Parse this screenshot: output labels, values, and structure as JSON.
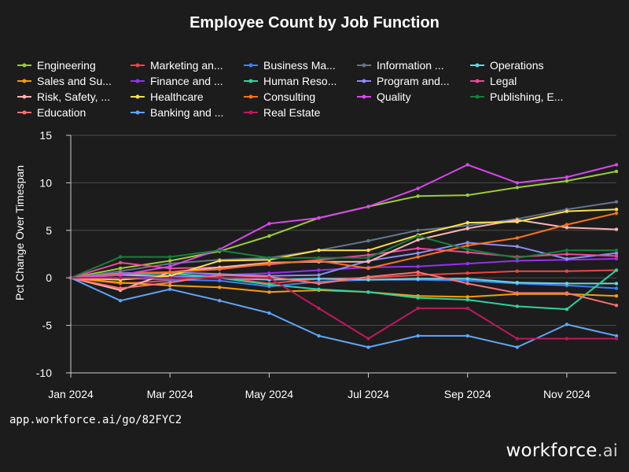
{
  "chart_data": {
    "type": "line",
    "title": "Employee Count by Job Function",
    "xlabel": "",
    "ylabel": "Pct Change Over Timespan",
    "ylim": [
      -10,
      15
    ],
    "yticks": [
      -10,
      -5,
      0,
      5,
      10,
      15
    ],
    "x": [
      "2024-01",
      "2024-02",
      "2024-03",
      "2024-04",
      "2024-05",
      "2024-06",
      "2024-07",
      "2024-08",
      "2024-09",
      "2024-10",
      "2024-11",
      "2024-12"
    ],
    "xticks": [
      {
        "index": 0,
        "label": "Jan 2024"
      },
      {
        "index": 2,
        "label": "Mar 2024"
      },
      {
        "index": 4,
        "label": "May 2024"
      },
      {
        "index": 6,
        "label": "Jul 2024"
      },
      {
        "index": 8,
        "label": "Sep 2024"
      },
      {
        "index": 10,
        "label": "Nov 2024"
      }
    ],
    "grid": true,
    "legend_position": "top",
    "series": [
      {
        "name": "Engineering",
        "color": "#9acd32",
        "values": [
          0,
          1.0,
          1.8,
          2.8,
          4.4,
          6.3,
          7.5,
          8.6,
          8.7,
          9.5,
          10.2,
          11.2
        ]
      },
      {
        "name": "Marketing an...",
        "color": "#ef4444",
        "values": [
          0,
          -0.6,
          -0.3,
          0.1,
          -0.6,
          -0.1,
          0.0,
          0.3,
          0.5,
          0.7,
          0.7,
          0.8
        ]
      },
      {
        "name": "Business Ma...",
        "color": "#3b82f6",
        "values": [
          0,
          0.0,
          -0.2,
          -0.3,
          -0.9,
          -0.4,
          -0.2,
          -0.2,
          -0.3,
          -0.6,
          -0.8,
          -1.1
        ]
      },
      {
        "name": "Information ...",
        "color": "#64748b",
        "values": [
          0,
          0.7,
          1.5,
          1.9,
          2.1,
          2.9,
          3.9,
          5.0,
          5.5,
          6.2,
          7.2,
          8.0
        ]
      },
      {
        "name": "Operations",
        "color": "#67d6e3",
        "values": [
          0,
          0.3,
          0.2,
          0.0,
          -0.2,
          -0.1,
          -0.2,
          -0.1,
          -0.1,
          -0.5,
          -0.6,
          -0.6
        ]
      },
      {
        "name": "Sales and Su...",
        "color": "#f59e0b",
        "values": [
          0,
          -0.5,
          -0.8,
          -1.0,
          -1.5,
          -1.3,
          -1.5,
          -1.9,
          -2.0,
          -1.7,
          -1.7,
          -1.9
        ]
      },
      {
        "name": "Finance and ...",
        "color": "#9333ea",
        "values": [
          0,
          0.0,
          0.2,
          0.3,
          0.5,
          0.8,
          1.1,
          1.2,
          1.5,
          1.8,
          1.9,
          2.0
        ]
      },
      {
        "name": "Human Reso...",
        "color": "#2dd4a0",
        "values": [
          0,
          0.4,
          0.5,
          0.0,
          -0.7,
          -1.2,
          -1.5,
          -2.1,
          -2.3,
          -3.0,
          -3.3,
          0.8
        ]
      },
      {
        "name": "Program and...",
        "color": "#8b8cf8",
        "values": [
          0,
          0.5,
          0.6,
          0.4,
          0.2,
          0.3,
          1.8,
          2.6,
          3.7,
          3.3,
          2.0,
          2.6
        ]
      },
      {
        "name": "Legal",
        "color": "#ec4899",
        "values": [
          0,
          1.6,
          1.0,
          1.1,
          1.4,
          1.9,
          2.4,
          3.1,
          2.7,
          2.2,
          2.5,
          2.3
        ]
      },
      {
        "name": "Risk, Safety, ...",
        "color": "#fbb4b4",
        "values": [
          0,
          -1.3,
          0.6,
          1.1,
          1.6,
          1.7,
          1.7,
          4.0,
          5.2,
          6.1,
          5.3,
          5.1
        ]
      },
      {
        "name": "Healthcare",
        "color": "#fde047",
        "values": [
          0,
          -0.2,
          0.2,
          1.8,
          1.9,
          2.9,
          2.9,
          4.5,
          5.8,
          5.9,
          7.0,
          7.2
        ]
      },
      {
        "name": "Consulting",
        "color": "#f97316",
        "values": [
          0,
          0.4,
          0.6,
          0.9,
          1.5,
          1.8,
          1.0,
          2.2,
          3.4,
          4.2,
          5.6,
          6.8
        ]
      },
      {
        "name": "Quality",
        "color": "#d946ef",
        "values": [
          0,
          0.3,
          1.2,
          3.0,
          5.7,
          6.3,
          7.5,
          9.4,
          11.9,
          10.0,
          10.6,
          11.9
        ]
      },
      {
        "name": "Publishing, E...",
        "color": "#15803d",
        "values": [
          0,
          2.2,
          2.2,
          2.9,
          2.1,
          2.1,
          2.1,
          4.4,
          3.0,
          2.1,
          2.9,
          2.9
        ]
      },
      {
        "name": "Education",
        "color": "#f87171",
        "values": [
          0,
          -1.1,
          -0.5,
          0.3,
          0.1,
          -0.6,
          0.1,
          0.6,
          -0.6,
          -1.6,
          -1.6,
          -2.9
        ]
      },
      {
        "name": "Banking and ...",
        "color": "#60a5fa",
        "values": [
          0,
          -2.4,
          -1.2,
          -2.4,
          -3.7,
          -6.1,
          -7.3,
          -6.1,
          -6.1,
          -7.3,
          -4.9,
          -6.1
        ]
      },
      {
        "name": "Real Estate",
        "color": "#be185d",
        "values": [
          0,
          0.0,
          0.0,
          0.0,
          0.0,
          -3.2,
          -6.4,
          -3.2,
          -3.2,
          -6.4,
          -6.4,
          -6.4
        ]
      }
    ]
  },
  "footer": {
    "url": "app.workforce.ai/go/82FYC2",
    "brand_main": "workforce",
    "brand_suffix": ".ai"
  }
}
